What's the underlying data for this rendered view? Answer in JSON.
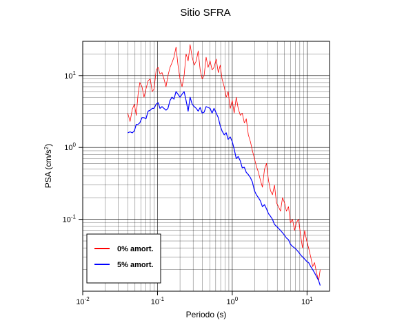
{
  "chart_data": {
    "type": "line",
    "title": "Sitio SFRA",
    "xlabel": "Periodo (s)",
    "ylabel_base": "PSA (cm/s",
    "ylabel_exp": "2",
    "ylabel_end": ")",
    "x_scale": "log",
    "y_scale": "log",
    "xlim": [
      0.01,
      20
    ],
    "ylim": [
      0.01,
      30
    ],
    "grid": true,
    "legend_position": "bottom-left",
    "x_ticks": [
      {
        "value": 0.01,
        "base": "10",
        "exp": "-2"
      },
      {
        "value": 0.1,
        "base": "10",
        "exp": "-1"
      },
      {
        "value": 1,
        "base": "10",
        "exp": "0"
      },
      {
        "value": 10,
        "base": "10",
        "exp": "1"
      }
    ],
    "y_ticks": [
      {
        "value": 0.1,
        "base": "10",
        "exp": "-1"
      },
      {
        "value": 1,
        "base": "10",
        "exp": "0"
      },
      {
        "value": 10,
        "base": "10",
        "exp": "1"
      }
    ],
    "series": [
      {
        "name": "0% amort.",
        "color": "#ff0000",
        "x": [
          0.04,
          0.043,
          0.046,
          0.049,
          0.052,
          0.055,
          0.058,
          0.062,
          0.066,
          0.07,
          0.075,
          0.08,
          0.085,
          0.09,
          0.096,
          0.102,
          0.108,
          0.115,
          0.122,
          0.13,
          0.138,
          0.147,
          0.156,
          0.166,
          0.177,
          0.188,
          0.2,
          0.213,
          0.227,
          0.241,
          0.257,
          0.273,
          0.291,
          0.31,
          0.33,
          0.35,
          0.372,
          0.396,
          0.42,
          0.447,
          0.475,
          0.505,
          0.537,
          0.57,
          0.61,
          0.65,
          0.69,
          0.73,
          0.78,
          0.83,
          0.88,
          0.94,
          1.0,
          1.06,
          1.13,
          1.2,
          1.28,
          1.36,
          1.45,
          1.54,
          1.64,
          1.75,
          1.86,
          1.98,
          2.1,
          2.24,
          2.38,
          2.53,
          2.7,
          2.87,
          3.05,
          3.25,
          3.45,
          3.67,
          3.9,
          4.15,
          4.42,
          4.7,
          5.0,
          5.3,
          5.65,
          6.0,
          6.4,
          6.8,
          7.2,
          7.7,
          8.2,
          8.7,
          9.3,
          9.9,
          10.5,
          11.2,
          11.9,
          12.6,
          13.4,
          14.3,
          15.0
        ],
        "values": [
          3.0,
          2.3,
          3.4,
          4.0,
          2.8,
          5.5,
          8.0,
          7.0,
          5.0,
          6.5,
          8.5,
          9.0,
          6.0,
          6.5,
          12.0,
          13.0,
          10.5,
          11.0,
          9.0,
          7.0,
          10.0,
          13.0,
          15.0,
          18.0,
          25.0,
          14.0,
          9.0,
          7.0,
          10.0,
          20.0,
          16.0,
          27.0,
          18.0,
          14.0,
          16.0,
          22.0,
          12.0,
          9.0,
          10.0,
          18.0,
          13.0,
          16.0,
          12.0,
          13.0,
          17.0,
          11.0,
          14.0,
          9.0,
          7.0,
          5.0,
          6.0,
          3.5,
          4.5,
          3.0,
          5.0,
          3.5,
          2.8,
          3.0,
          2.2,
          2.5,
          1.5,
          1.2,
          0.9,
          0.7,
          0.55,
          0.45,
          0.35,
          0.28,
          0.5,
          0.6,
          0.35,
          0.25,
          0.22,
          0.3,
          0.17,
          0.15,
          0.13,
          0.2,
          0.17,
          0.13,
          0.15,
          0.09,
          0.1,
          0.07,
          0.09,
          0.1,
          0.06,
          0.04,
          0.07,
          0.05,
          0.04,
          0.03,
          0.022,
          0.025,
          0.018,
          0.014,
          0.02
        ]
      },
      {
        "name": "5% amort.",
        "color": "#0000ff",
        "x": [
          0.04,
          0.043,
          0.046,
          0.049,
          0.052,
          0.055,
          0.058,
          0.062,
          0.066,
          0.07,
          0.075,
          0.08,
          0.085,
          0.09,
          0.096,
          0.102,
          0.108,
          0.115,
          0.122,
          0.13,
          0.138,
          0.147,
          0.156,
          0.166,
          0.177,
          0.188,
          0.2,
          0.213,
          0.227,
          0.241,
          0.257,
          0.273,
          0.291,
          0.31,
          0.33,
          0.35,
          0.372,
          0.396,
          0.42,
          0.447,
          0.475,
          0.505,
          0.537,
          0.57,
          0.61,
          0.65,
          0.69,
          0.73,
          0.78,
          0.83,
          0.88,
          0.94,
          1.0,
          1.06,
          1.13,
          1.2,
          1.28,
          1.36,
          1.45,
          1.54,
          1.64,
          1.75,
          1.86,
          1.98,
          2.1,
          2.24,
          2.38,
          2.53,
          2.7,
          2.87,
          3.05,
          3.25,
          3.45,
          3.67,
          3.9,
          4.15,
          4.42,
          4.7,
          5.0,
          5.3,
          5.65,
          6.0,
          6.4,
          6.8,
          7.2,
          7.7,
          8.2,
          8.7,
          9.3,
          9.9,
          10.5,
          11.2,
          11.9,
          12.6,
          13.4,
          14.3,
          15.0
        ],
        "values": [
          1.6,
          1.65,
          1.6,
          1.7,
          2.1,
          2.1,
          2.2,
          2.6,
          2.6,
          2.5,
          3.2,
          3.3,
          3.5,
          3.5,
          4.0,
          4.2,
          3.5,
          3.7,
          3.5,
          3.3,
          3.5,
          4.5,
          5.0,
          4.7,
          6.0,
          5.5,
          5.0,
          5.5,
          6.0,
          4.5,
          3.2,
          5.0,
          4.0,
          3.7,
          3.5,
          3.2,
          3.6,
          3.0,
          3.1,
          3.7,
          3.6,
          3.5,
          3.0,
          3.5,
          3.0,
          2.6,
          2.0,
          1.7,
          1.5,
          1.6,
          1.3,
          1.4,
          1.2,
          0.95,
          0.7,
          0.75,
          0.65,
          0.52,
          0.53,
          0.45,
          0.42,
          0.38,
          0.33,
          0.25,
          0.22,
          0.2,
          0.18,
          0.15,
          0.16,
          0.14,
          0.12,
          0.11,
          0.1,
          0.085,
          0.08,
          0.075,
          0.07,
          0.065,
          0.06,
          0.055,
          0.052,
          0.045,
          0.042,
          0.04,
          0.038,
          0.035,
          0.032,
          0.03,
          0.028,
          0.026,
          0.025,
          0.022,
          0.02,
          0.018,
          0.016,
          0.014,
          0.012
        ]
      }
    ]
  }
}
